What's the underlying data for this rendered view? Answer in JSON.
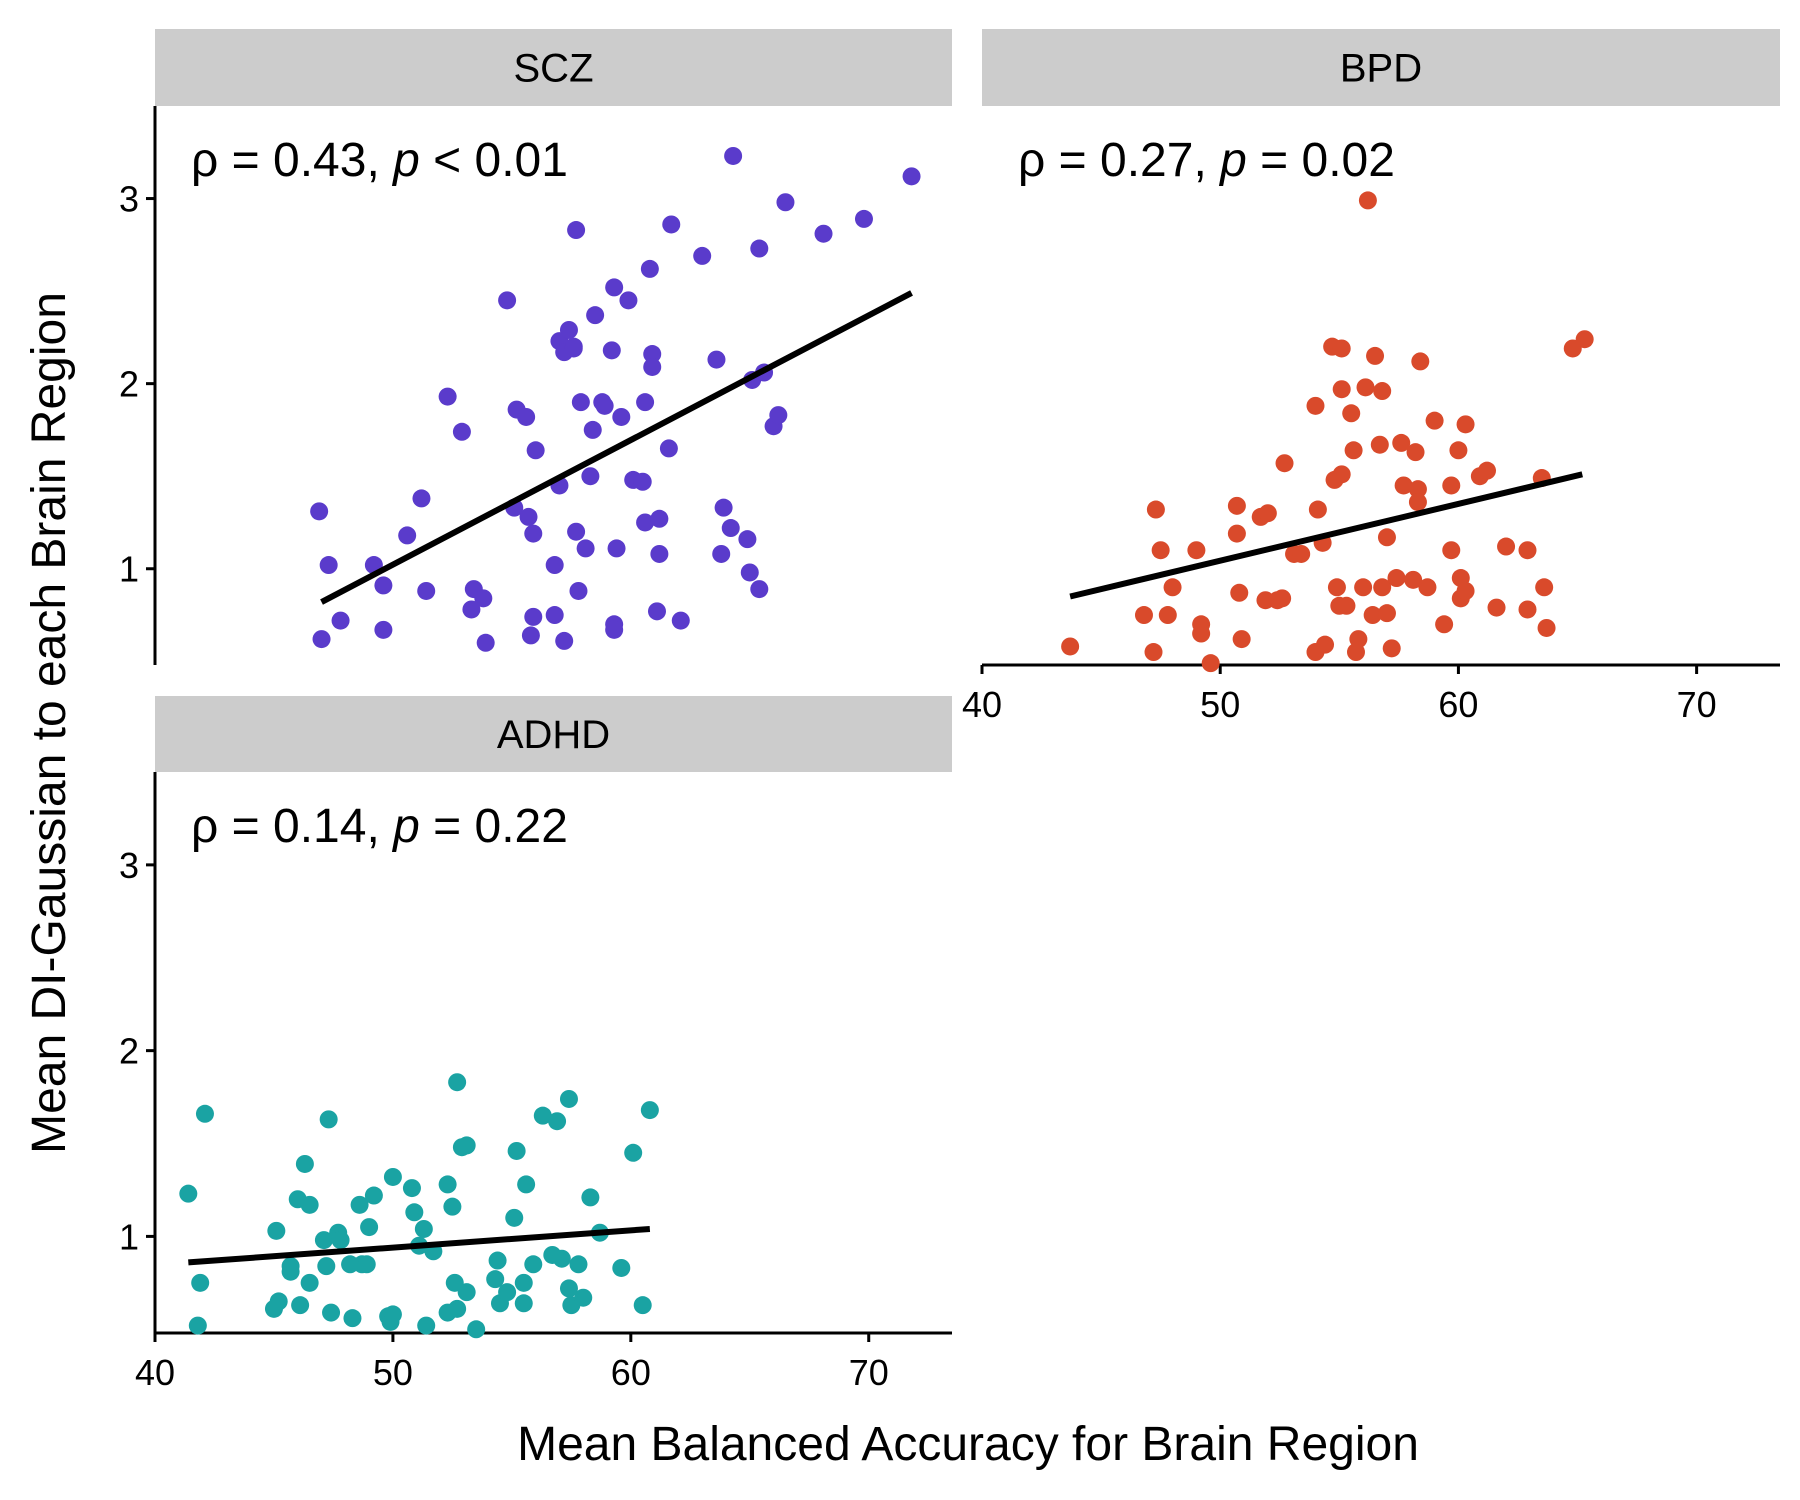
{
  "figure": {
    "xlabel": "Mean Balanced Accuracy for Brain Region",
    "ylabel": "Mean DI-Gaussian to each Brain Region"
  },
  "chart_data": [
    {
      "type": "scatter",
      "panel": "SCZ",
      "color": "#5a3bcb",
      "stat": {
        "rho": "0.43",
        "op": "<",
        "p": "0.01"
      },
      "xlim": [
        40,
        73.5
      ],
      "ylim": [
        0.48,
        3.5
      ],
      "xticks": [
        "40",
        "50",
        "60",
        "70"
      ],
      "yticks": [
        "1",
        "2",
        "3"
      ],
      "fit": {
        "x": [
          47.0,
          71.8
        ],
        "y": [
          0.82,
          2.49
        ]
      },
      "points": [
        [
          46.9,
          1.31
        ],
        [
          47.0,
          0.62
        ],
        [
          47.3,
          1.02
        ],
        [
          47.8,
          0.72
        ],
        [
          49.2,
          1.02
        ],
        [
          49.6,
          0.91
        ],
        [
          49.6,
          0.67
        ],
        [
          50.6,
          1.18
        ],
        [
          51.2,
          1.38
        ],
        [
          51.4,
          0.88
        ],
        [
          52.3,
          1.93
        ],
        [
          52.9,
          1.74
        ],
        [
          53.3,
          0.78
        ],
        [
          53.4,
          0.89
        ],
        [
          53.8,
          0.84
        ],
        [
          53.9,
          0.6
        ],
        [
          54.8,
          2.45
        ],
        [
          55.1,
          1.33
        ],
        [
          55.2,
          1.86
        ],
        [
          55.6,
          1.82
        ],
        [
          55.7,
          1.28
        ],
        [
          55.8,
          0.64
        ],
        [
          55.9,
          0.74
        ],
        [
          55.9,
          1.19
        ],
        [
          56.0,
          1.64
        ],
        [
          56.8,
          0.75
        ],
        [
          56.8,
          1.02
        ],
        [
          57.0,
          2.23
        ],
        [
          57.0,
          1.45
        ],
        [
          57.2,
          2.17
        ],
        [
          57.2,
          0.61
        ],
        [
          57.4,
          2.29
        ],
        [
          57.6,
          2.2
        ],
        [
          57.6,
          2.19
        ],
        [
          57.7,
          2.83
        ],
        [
          57.7,
          1.2
        ],
        [
          57.8,
          0.88
        ],
        [
          57.9,
          1.9
        ],
        [
          58.1,
          1.11
        ],
        [
          58.3,
          1.5
        ],
        [
          58.4,
          1.75
        ],
        [
          58.5,
          2.37
        ],
        [
          58.8,
          1.9
        ],
        [
          58.9,
          1.88
        ],
        [
          59.2,
          2.18
        ],
        [
          59.3,
          2.52
        ],
        [
          59.3,
          0.7
        ],
        [
          59.3,
          0.67
        ],
        [
          59.4,
          1.11
        ],
        [
          59.6,
          1.82
        ],
        [
          59.9,
          2.45
        ],
        [
          60.1,
          1.48
        ],
        [
          60.5,
          1.47
        ],
        [
          60.6,
          1.9
        ],
        [
          60.6,
          1.25
        ],
        [
          60.8,
          2.62
        ],
        [
          60.9,
          2.16
        ],
        [
          60.9,
          2.09
        ],
        [
          61.1,
          0.77
        ],
        [
          61.2,
          1.27
        ],
        [
          61.2,
          1.08
        ],
        [
          61.6,
          1.65
        ],
        [
          61.7,
          2.86
        ],
        [
          62.1,
          0.72
        ],
        [
          63.0,
          2.69
        ],
        [
          63.6,
          2.13
        ],
        [
          63.8,
          1.08
        ],
        [
          63.9,
          1.33
        ],
        [
          64.2,
          1.22
        ],
        [
          64.3,
          3.23
        ],
        [
          64.9,
          1.16
        ],
        [
          65.0,
          0.98
        ],
        [
          65.1,
          2.02
        ],
        [
          65.4,
          2.73
        ],
        [
          65.4,
          0.89
        ],
        [
          65.6,
          2.06
        ],
        [
          66.0,
          1.77
        ],
        [
          66.2,
          1.83
        ],
        [
          66.5,
          2.98
        ],
        [
          68.1,
          2.81
        ],
        [
          69.8,
          2.89
        ],
        [
          71.8,
          3.12
        ]
      ]
    },
    {
      "type": "scatter",
      "panel": "BPD",
      "color": "#d94a2b",
      "stat": {
        "rho": "0.27",
        "op": "=",
        "p": "0.02"
      },
      "xlim": [
        40,
        73.5
      ],
      "ylim": [
        0.48,
        3.5
      ],
      "xticks": [
        "40",
        "50",
        "60",
        "70"
      ],
      "yticks": [
        "1",
        "2",
        "3"
      ],
      "fit": {
        "x": [
          43.7,
          65.2
        ],
        "y": [
          0.85,
          1.51
        ]
      },
      "points": [
        [
          43.7,
          0.58
        ],
        [
          46.8,
          0.75
        ],
        [
          47.2,
          0.55
        ],
        [
          47.3,
          1.32
        ],
        [
          47.5,
          1.1
        ],
        [
          47.8,
          0.75
        ],
        [
          48.0,
          0.9
        ],
        [
          49.0,
          1.1
        ],
        [
          49.2,
          0.7
        ],
        [
          49.2,
          0.65
        ],
        [
          49.6,
          0.49
        ],
        [
          50.7,
          1.34
        ],
        [
          50.7,
          1.19
        ],
        [
          50.8,
          0.87
        ],
        [
          50.9,
          0.62
        ],
        [
          51.7,
          1.28
        ],
        [
          51.9,
          0.83
        ],
        [
          52.0,
          1.3
        ],
        [
          52.4,
          0.83
        ],
        [
          52.6,
          0.84
        ],
        [
          52.7,
          1.57
        ],
        [
          53.1,
          1.08
        ],
        [
          53.4,
          1.08
        ],
        [
          54.0,
          0.55
        ],
        [
          54.0,
          1.88
        ],
        [
          54.1,
          1.32
        ],
        [
          54.3,
          1.14
        ],
        [
          54.4,
          0.59
        ],
        [
          54.7,
          2.2
        ],
        [
          54.8,
          1.48
        ],
        [
          54.9,
          0.9
        ],
        [
          55.0,
          0.8
        ],
        [
          55.1,
          1.97
        ],
        [
          55.1,
          1.51
        ],
        [
          55.1,
          2.19
        ],
        [
          55.3,
          0.8
        ],
        [
          55.5,
          1.84
        ],
        [
          55.6,
          1.64
        ],
        [
          55.7,
          0.55
        ],
        [
          55.8,
          0.62
        ],
        [
          56.0,
          0.9
        ],
        [
          56.1,
          1.98
        ],
        [
          56.2,
          2.99
        ],
        [
          56.4,
          0.75
        ],
        [
          56.5,
          2.15
        ],
        [
          56.7,
          1.67
        ],
        [
          56.8,
          1.96
        ],
        [
          56.8,
          0.9
        ],
        [
          57.0,
          1.17
        ],
        [
          57.0,
          0.76
        ],
        [
          57.2,
          0.57
        ],
        [
          57.4,
          0.95
        ],
        [
          57.6,
          1.68
        ],
        [
          57.7,
          1.45
        ],
        [
          58.1,
          0.94
        ],
        [
          58.2,
          1.63
        ],
        [
          58.3,
          1.43
        ],
        [
          58.3,
          1.36
        ],
        [
          58.4,
          2.12
        ],
        [
          58.7,
          0.9
        ],
        [
          59.0,
          1.8
        ],
        [
          59.4,
          0.7
        ],
        [
          59.7,
          1.45
        ],
        [
          59.7,
          1.1
        ],
        [
          60.0,
          1.64
        ],
        [
          60.1,
          0.95
        ],
        [
          60.1,
          0.84
        ],
        [
          60.3,
          1.78
        ],
        [
          60.3,
          0.88
        ],
        [
          60.9,
          1.5
        ],
        [
          61.2,
          1.53
        ],
        [
          61.6,
          0.79
        ],
        [
          62.0,
          1.12
        ],
        [
          62.9,
          0.78
        ],
        [
          62.9,
          1.1
        ],
        [
          63.5,
          1.49
        ],
        [
          63.6,
          0.9
        ],
        [
          63.7,
          0.68
        ],
        [
          64.8,
          2.19
        ],
        [
          65.3,
          2.24
        ]
      ]
    },
    {
      "type": "scatter",
      "panel": "ADHD",
      "color": "#1aa3a3",
      "stat": {
        "rho": "0.14",
        "op": "=",
        "p": "0.22"
      },
      "xlim": [
        40,
        73.5
      ],
      "ylim": [
        0.48,
        3.5
      ],
      "xticks": [
        "40",
        "50",
        "60",
        "70"
      ],
      "yticks": [
        "1",
        "2",
        "3"
      ],
      "fit": {
        "x": [
          41.4,
          60.8
        ],
        "y": [
          0.86,
          1.04
        ]
      },
      "points": [
        [
          41.4,
          1.23
        ],
        [
          41.8,
          0.52
        ],
        [
          41.9,
          0.75
        ],
        [
          42.1,
          1.66
        ],
        [
          45.0,
          0.61
        ],
        [
          45.1,
          1.03
        ],
        [
          45.2,
          0.65
        ],
        [
          45.7,
          0.81
        ],
        [
          45.7,
          0.84
        ],
        [
          46.0,
          1.2
        ],
        [
          46.1,
          0.63
        ],
        [
          46.3,
          1.39
        ],
        [
          46.5,
          1.17
        ],
        [
          46.5,
          0.75
        ],
        [
          47.1,
          0.98
        ],
        [
          47.2,
          0.84
        ],
        [
          47.3,
          1.63
        ],
        [
          47.4,
          0.59
        ],
        [
          47.7,
          1.02
        ],
        [
          47.8,
          0.98
        ],
        [
          48.2,
          0.85
        ],
        [
          48.3,
          0.56
        ],
        [
          48.6,
          1.17
        ],
        [
          48.7,
          0.85
        ],
        [
          48.9,
          0.85
        ],
        [
          49.0,
          1.05
        ],
        [
          49.2,
          1.22
        ],
        [
          49.8,
          0.57
        ],
        [
          49.9,
          0.54
        ],
        [
          50.0,
          0.58
        ],
        [
          50.0,
          1.32
        ],
        [
          50.8,
          1.26
        ],
        [
          50.9,
          1.13
        ],
        [
          51.1,
          0.95
        ],
        [
          51.3,
          1.04
        ],
        [
          51.4,
          0.52
        ],
        [
          51.7,
          0.92
        ],
        [
          52.3,
          0.59
        ],
        [
          52.3,
          1.28
        ],
        [
          52.5,
          1.16
        ],
        [
          52.6,
          0.75
        ],
        [
          52.7,
          0.61
        ],
        [
          52.7,
          1.83
        ],
        [
          52.9,
          1.48
        ],
        [
          53.1,
          0.7
        ],
        [
          53.1,
          1.49
        ],
        [
          53.5,
          0.5
        ],
        [
          54.3,
          0.77
        ],
        [
          54.4,
          0.87
        ],
        [
          54.5,
          0.64
        ],
        [
          54.8,
          0.7
        ],
        [
          55.1,
          1.1
        ],
        [
          55.2,
          1.46
        ],
        [
          55.5,
          0.75
        ],
        [
          55.5,
          0.64
        ],
        [
          55.6,
          1.28
        ],
        [
          55.9,
          0.85
        ],
        [
          56.3,
          1.65
        ],
        [
          56.7,
          0.9
        ],
        [
          56.9,
          1.62
        ],
        [
          57.1,
          0.88
        ],
        [
          57.4,
          0.72
        ],
        [
          57.4,
          1.74
        ],
        [
          57.5,
          0.63
        ],
        [
          57.8,
          0.85
        ],
        [
          58.0,
          0.67
        ],
        [
          58.3,
          1.21
        ],
        [
          58.7,
          1.02
        ],
        [
          59.6,
          0.83
        ],
        [
          60.1,
          1.45
        ],
        [
          60.5,
          0.63
        ],
        [
          60.8,
          1.68
        ]
      ]
    }
  ]
}
